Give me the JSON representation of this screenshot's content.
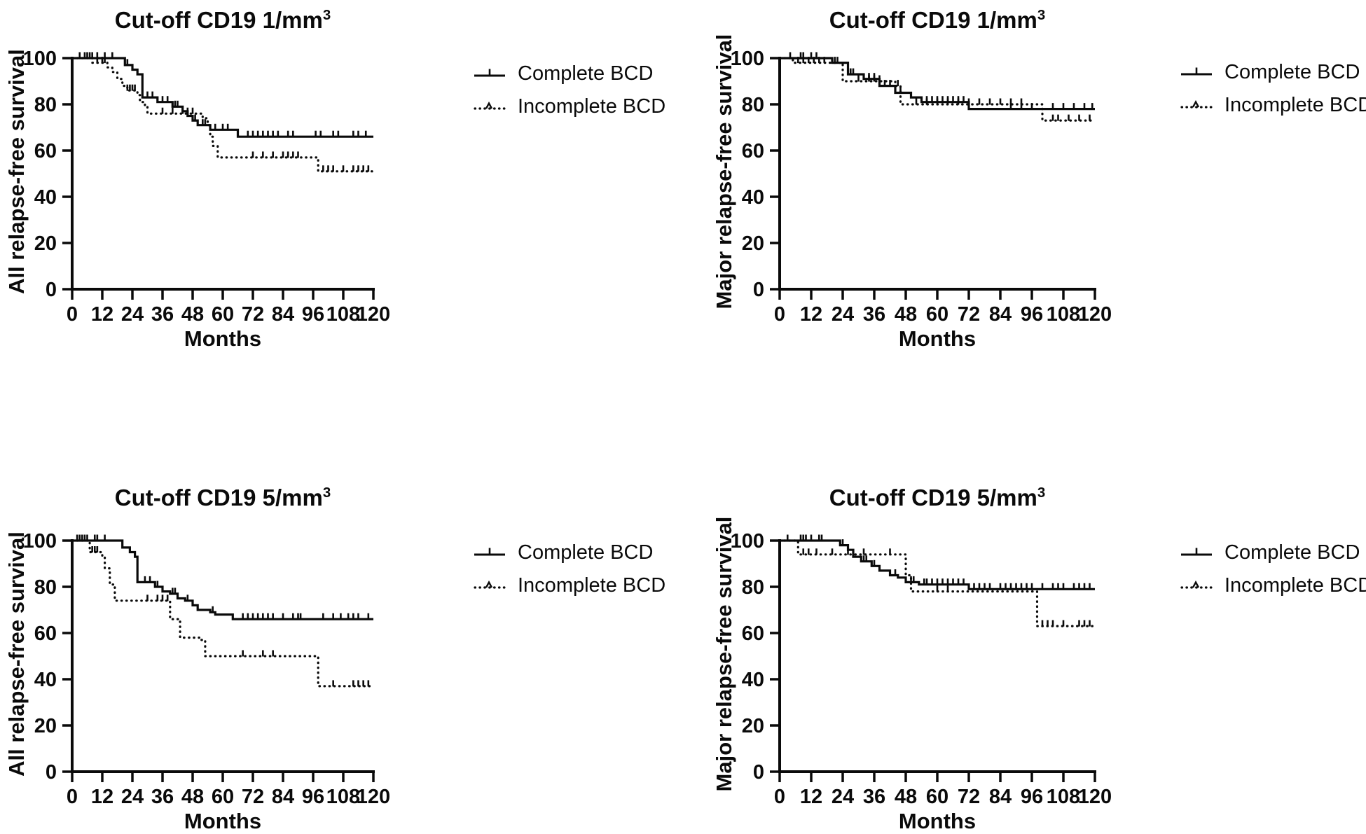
{
  "figure": {
    "description": "2x2 grid of Kaplan-Meier relapse-free survival curves by B-cell depletion (BCD) completeness",
    "background_color": "#ffffff",
    "line_color": "#0a0a0a"
  },
  "legend": {
    "complete_label": "Complete BCD",
    "incomplete_label": "Incomplete BCD"
  },
  "chart_data": [
    {
      "panel": "top-left",
      "type": "line",
      "km_step": true,
      "title": "Cut-off CD19 1/mm³",
      "title_base": "Cut-off CD19 1/mm",
      "title_sup": "3",
      "ylabel": "All relapse-free survival",
      "xlabel": "Months",
      "xlim": [
        0,
        120
      ],
      "ylim": [
        0,
        100
      ],
      "xticks": [
        0,
        12,
        24,
        36,
        48,
        60,
        72,
        84,
        96,
        108,
        120
      ],
      "yticks": [
        0,
        20,
        40,
        60,
        80,
        100
      ],
      "grid": false,
      "legend_position": "right-of-plot-top",
      "series": [
        {
          "name": "Complete BCD",
          "style": "solid",
          "steps": [
            [
              0,
              100
            ],
            [
              21,
              97
            ],
            [
              24,
              95
            ],
            [
              26,
              93
            ],
            [
              28,
              83
            ],
            [
              34,
              81
            ],
            [
              40,
              79
            ],
            [
              44,
              77
            ],
            [
              46,
              75
            ],
            [
              48,
              73
            ],
            [
              50,
              71
            ],
            [
              55,
              69
            ],
            [
              66,
              66
            ]
          ],
          "end": 120,
          "censor_marks": [
            3,
            5,
            6,
            7,
            8,
            10,
            13,
            16,
            22,
            30,
            32,
            36,
            38,
            41,
            42,
            49,
            52,
            53,
            57,
            60,
            62,
            70,
            72,
            74,
            76,
            78,
            80,
            82,
            86,
            88,
            97,
            99,
            104,
            106,
            112,
            114,
            117
          ]
        },
        {
          "name": "Incomplete BCD",
          "style": "dotted",
          "steps": [
            [
              0,
              100
            ],
            [
              8,
              98
            ],
            [
              14,
              96
            ],
            [
              16,
              94
            ],
            [
              18,
              91
            ],
            [
              20,
              88
            ],
            [
              22,
              86
            ],
            [
              26,
              84
            ],
            [
              27,
              81
            ],
            [
              29,
              79
            ],
            [
              30,
              76
            ],
            [
              52,
              74
            ],
            [
              54,
              71
            ],
            [
              55,
              66
            ],
            [
              56,
              62
            ],
            [
              58,
              57
            ],
            [
              98,
              51
            ]
          ],
          "end": 120,
          "censor_marks": [
            10,
            12,
            13,
            22,
            23,
            24,
            25,
            36,
            40,
            44,
            46,
            48,
            72,
            76,
            80,
            84,
            86,
            88,
            90,
            100,
            102,
            104,
            108,
            112,
            114,
            116,
            118
          ]
        }
      ]
    },
    {
      "panel": "top-right",
      "type": "line",
      "km_step": true,
      "title": "Cut-off CD19 1/mm³",
      "title_base": "Cut-off CD19 1/mm",
      "title_sup": "3",
      "ylabel": "Major relapse-free survival",
      "xlabel": "Months",
      "xlim": [
        0,
        120
      ],
      "ylim": [
        0,
        100
      ],
      "xticks": [
        0,
        12,
        24,
        36,
        48,
        60,
        72,
        84,
        96,
        108,
        120
      ],
      "yticks": [
        0,
        20,
        40,
        60,
        80,
        100
      ],
      "grid": false,
      "legend_position": "right-of-plot-top",
      "series": [
        {
          "name": "Complete BCD",
          "style": "solid",
          "steps": [
            [
              0,
              100
            ],
            [
              20,
              98
            ],
            [
              26,
              93
            ],
            [
              32,
              91
            ],
            [
              38,
              88
            ],
            [
              44,
              85
            ],
            [
              50,
              83
            ],
            [
              54,
              81
            ],
            [
              72,
              78
            ]
          ],
          "end": 120,
          "censor_marks": [
            4,
            8,
            9,
            12,
            14,
            21,
            22,
            27,
            28,
            34,
            36,
            40,
            42,
            46,
            56,
            58,
            60,
            62,
            64,
            66,
            68,
            70,
            88,
            92,
            96,
            104,
            108,
            112,
            116,
            119
          ]
        },
        {
          "name": "Incomplete BCD",
          "style": "dotted",
          "steps": [
            [
              0,
              100
            ],
            [
              5,
              98
            ],
            [
              24,
              90
            ],
            [
              44,
              88
            ],
            [
              46,
              80
            ],
            [
              100,
              73
            ]
          ],
          "end": 120,
          "censor_marks": [
            7,
            9,
            11,
            13,
            15,
            17,
            30,
            34,
            36,
            38,
            45,
            52,
            56,
            60,
            64,
            68,
            72,
            76,
            80,
            84,
            88,
            92,
            104,
            106,
            110,
            114,
            118
          ]
        }
      ]
    },
    {
      "panel": "bottom-left",
      "type": "line",
      "km_step": true,
      "title": "Cut-off CD19 5/mm³",
      "title_base": "Cut-off CD19 5/mm",
      "title_sup": "3",
      "ylabel": "All relapse-free survival",
      "xlabel": "Months",
      "xlim": [
        0,
        120
      ],
      "ylim": [
        0,
        100
      ],
      "xticks": [
        0,
        12,
        24,
        36,
        48,
        60,
        72,
        84,
        96,
        108,
        120
      ],
      "yticks": [
        0,
        20,
        40,
        60,
        80,
        100
      ],
      "grid": false,
      "legend_position": "right-of-plot-top",
      "series": [
        {
          "name": "Complete BCD",
          "style": "solid",
          "steps": [
            [
              0,
              100
            ],
            [
              20,
              97
            ],
            [
              23,
              95
            ],
            [
              25,
              93
            ],
            [
              26,
              82
            ],
            [
              33,
              80
            ],
            [
              36,
              78
            ],
            [
              39,
              77
            ],
            [
              42,
              75
            ],
            [
              45,
              74
            ],
            [
              48,
              72
            ],
            [
              50,
              70
            ],
            [
              55,
              69
            ],
            [
              57,
              68
            ],
            [
              64,
              66
            ]
          ],
          "end": 120,
          "censor_marks": [
            2,
            3,
            4,
            5,
            6,
            9,
            10,
            13,
            29,
            31,
            34,
            40,
            41,
            46,
            56,
            68,
            70,
            72,
            74,
            76,
            78,
            80,
            84,
            88,
            90,
            91,
            100,
            104,
            107,
            110,
            112,
            114,
            118
          ]
        },
        {
          "name": "Incomplete BCD",
          "style": "dotted",
          "steps": [
            [
              0,
              100
            ],
            [
              7,
              95
            ],
            [
              12,
              93
            ],
            [
              13,
              88
            ],
            [
              15,
              81
            ],
            [
              17,
              74
            ],
            [
              39,
              66
            ],
            [
              43,
              58
            ],
            [
              51,
              57
            ],
            [
              53,
              50
            ],
            [
              98,
              37
            ]
          ],
          "end": 120,
          "censor_marks": [
            8,
            9,
            10,
            30,
            34,
            36,
            38,
            68,
            76,
            80,
            104,
            112,
            114,
            116,
            118
          ]
        }
      ]
    },
    {
      "panel": "bottom-right",
      "type": "line",
      "km_step": true,
      "title": "Cut-off CD19 5/mm³",
      "title_base": "Cut-off CD19 5/mm",
      "title_sup": "3",
      "ylabel": "Major relapse-free survival",
      "xlabel": "Months",
      "xlim": [
        0,
        120
      ],
      "ylim": [
        0,
        100
      ],
      "xticks": [
        0,
        12,
        24,
        36,
        48,
        60,
        72,
        84,
        96,
        108,
        120
      ],
      "yticks": [
        0,
        20,
        40,
        60,
        80,
        100
      ],
      "grid": false,
      "legend_position": "right-of-plot-top",
      "series": [
        {
          "name": "Complete BCD",
          "style": "solid",
          "steps": [
            [
              0,
              100
            ],
            [
              23,
              98
            ],
            [
              26,
              96
            ],
            [
              28,
              93
            ],
            [
              31,
              91
            ],
            [
              35,
              89
            ],
            [
              38,
              87
            ],
            [
              42,
              85
            ],
            [
              45,
              84
            ],
            [
              48,
              82
            ],
            [
              53,
              81
            ],
            [
              72,
              79
            ]
          ],
          "end": 120,
          "censor_marks": [
            3,
            8,
            9,
            10,
            12,
            15,
            16,
            24,
            32,
            33,
            36,
            44,
            50,
            51,
            55,
            56,
            58,
            60,
            62,
            64,
            66,
            68,
            70,
            74,
            76,
            78,
            80,
            84,
            86,
            88,
            90,
            92,
            94,
            96,
            100,
            104,
            106,
            108,
            112,
            114,
            116,
            118
          ]
        },
        {
          "name": "Incomplete BCD",
          "style": "dotted",
          "steps": [
            [
              0,
              100
            ],
            [
              7,
              94
            ],
            [
              48,
              85
            ],
            [
              50,
              78
            ],
            [
              98,
              63
            ]
          ],
          "end": 120,
          "censor_marks": [
            9,
            11,
            14,
            20,
            26,
            32,
            42,
            60,
            64,
            100,
            102,
            104,
            108,
            114,
            116,
            118
          ]
        }
      ]
    }
  ]
}
